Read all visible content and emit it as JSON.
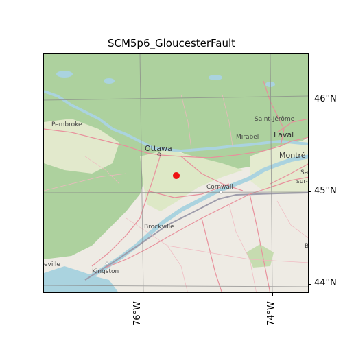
{
  "title": "SCM5p6_GloucesterFault",
  "lat_labels": [
    "46°N",
    "45°N",
    "44°N"
  ],
  "lon_labels": [
    "76°W",
    "74°W"
  ],
  "places": {
    "pembroke": "Pembroke",
    "ottawa": "Ottawa",
    "saint_jerome": "Saint-Jérôme",
    "mirabel": "Mirabel",
    "laval": "Laval",
    "montreal": "Montré",
    "sa": "Sa",
    "sur": "sur-",
    "cornwall": "Cornwall",
    "brockville": "Brockville",
    "kingston": "Kingston",
    "belleville": "eville",
    "b": "B"
  },
  "marker": {
    "color": "#ee1111",
    "lat": 45.18,
    "lon": -75.6
  },
  "colors": {
    "forest": "#add19e",
    "land": "#eeebe4",
    "water": "#aad3df",
    "road": "#e8909c",
    "border": "#9e9cab"
  }
}
